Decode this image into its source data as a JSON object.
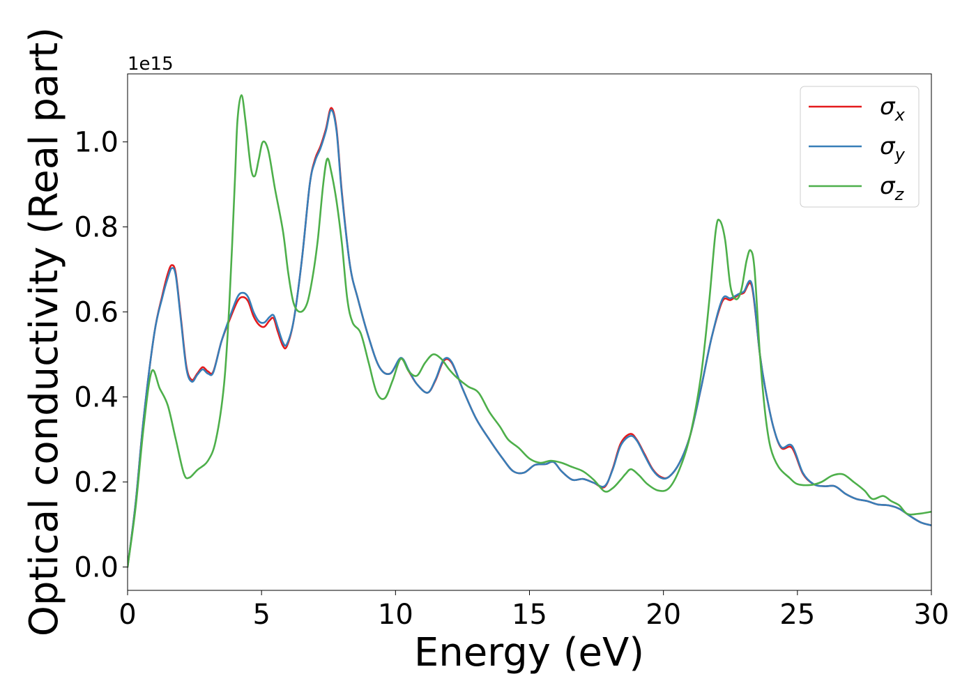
{
  "chart_data": {
    "type": "line",
    "title": "",
    "xlabel": "Energy (eV)",
    "ylabel": "Optical conductivity (Real part)",
    "offset_text": "1e15",
    "xlim": [
      0,
      30
    ],
    "ylim": [
      -0.055,
      1.16
    ],
    "x_ticks": [
      0,
      5,
      10,
      15,
      20,
      25,
      30
    ],
    "x_tick_labels": [
      "0",
      "5",
      "10",
      "15",
      "20",
      "25",
      "30"
    ],
    "y_ticks": [
      0.0,
      0.2,
      0.4,
      0.6,
      0.8,
      1.0
    ],
    "y_tick_labels": [
      "0.0",
      "0.2",
      "0.4",
      "0.6",
      "0.8",
      "1.0"
    ],
    "grid": false,
    "legend_position": "top-right",
    "series": [
      {
        "name": "σx",
        "label_base": "σ",
        "label_sub": "x",
        "color": "#e41a1c",
        "points": [
          [
            0,
            0
          ],
          [
            0.3,
            0.15
          ],
          [
            0.6,
            0.35
          ],
          [
            1.0,
            0.55
          ],
          [
            1.3,
            0.64
          ],
          [
            1.5,
            0.69
          ],
          [
            1.65,
            0.71
          ],
          [
            1.8,
            0.69
          ],
          [
            2.0,
            0.58
          ],
          [
            2.2,
            0.47
          ],
          [
            2.4,
            0.44
          ],
          [
            2.6,
            0.455
          ],
          [
            2.8,
            0.47
          ],
          [
            3.0,
            0.46
          ],
          [
            3.2,
            0.46
          ],
          [
            3.5,
            0.53
          ],
          [
            3.8,
            0.58
          ],
          [
            4.1,
            0.625
          ],
          [
            4.3,
            0.635
          ],
          [
            4.5,
            0.625
          ],
          [
            4.7,
            0.59
          ],
          [
            4.9,
            0.57
          ],
          [
            5.1,
            0.565
          ],
          [
            5.3,
            0.58
          ],
          [
            5.45,
            0.585
          ],
          [
            5.6,
            0.555
          ],
          [
            5.8,
            0.52
          ],
          [
            5.95,
            0.52
          ],
          [
            6.2,
            0.58
          ],
          [
            6.5,
            0.72
          ],
          [
            6.8,
            0.9
          ],
          [
            7.0,
            0.96
          ],
          [
            7.2,
            0.99
          ],
          [
            7.4,
            1.03
          ],
          [
            7.6,
            1.08
          ],
          [
            7.8,
            1.03
          ],
          [
            8.0,
            0.88
          ],
          [
            8.3,
            0.71
          ],
          [
            8.6,
            0.63
          ],
          [
            9.0,
            0.54
          ],
          [
            9.4,
            0.47
          ],
          [
            9.8,
            0.455
          ],
          [
            10.2,
            0.49
          ],
          [
            10.5,
            0.46
          ],
          [
            10.8,
            0.43
          ],
          [
            11.2,
            0.41
          ],
          [
            11.5,
            0.44
          ],
          [
            11.8,
            0.485
          ],
          [
            12.1,
            0.48
          ],
          [
            12.5,
            0.42
          ],
          [
            13.0,
            0.35
          ],
          [
            13.5,
            0.3
          ],
          [
            14.0,
            0.255
          ],
          [
            14.4,
            0.225
          ],
          [
            14.8,
            0.222
          ],
          [
            15.2,
            0.24
          ],
          [
            15.6,
            0.242
          ],
          [
            15.9,
            0.247
          ],
          [
            16.2,
            0.225
          ],
          [
            16.6,
            0.205
          ],
          [
            17.0,
            0.207
          ],
          [
            17.4,
            0.198
          ],
          [
            17.8,
            0.188
          ],
          [
            18.1,
            0.23
          ],
          [
            18.4,
            0.29
          ],
          [
            18.75,
            0.313
          ],
          [
            19.0,
            0.3
          ],
          [
            19.3,
            0.265
          ],
          [
            19.6,
            0.23
          ],
          [
            19.9,
            0.212
          ],
          [
            20.2,
            0.212
          ],
          [
            20.6,
            0.245
          ],
          [
            21.0,
            0.31
          ],
          [
            21.4,
            0.42
          ],
          [
            21.8,
            0.54
          ],
          [
            22.2,
            0.625
          ],
          [
            22.5,
            0.628
          ],
          [
            22.8,
            0.64
          ],
          [
            23.0,
            0.645
          ],
          [
            23.3,
            0.66
          ],
          [
            23.6,
            0.5
          ],
          [
            23.8,
            0.42
          ],
          [
            24.1,
            0.33
          ],
          [
            24.4,
            0.28
          ],
          [
            24.8,
            0.28
          ],
          [
            25.2,
            0.22
          ],
          [
            25.6,
            0.195
          ],
          [
            26.0,
            0.19
          ],
          [
            26.4,
            0.19
          ],
          [
            26.8,
            0.172
          ],
          [
            27.2,
            0.16
          ],
          [
            27.6,
            0.155
          ],
          [
            28.0,
            0.147
          ],
          [
            28.4,
            0.145
          ],
          [
            28.8,
            0.137
          ],
          [
            29.2,
            0.12
          ],
          [
            29.6,
            0.105
          ],
          [
            30.0,
            0.098
          ]
        ]
      },
      {
        "name": "σy",
        "label_base": "σ",
        "label_sub": "y",
        "color": "#377eb8",
        "points": [
          [
            0,
            0
          ],
          [
            0.3,
            0.15
          ],
          [
            0.6,
            0.35
          ],
          [
            1.0,
            0.55
          ],
          [
            1.3,
            0.635
          ],
          [
            1.5,
            0.68
          ],
          [
            1.65,
            0.703
          ],
          [
            1.8,
            0.685
          ],
          [
            2.0,
            0.575
          ],
          [
            2.2,
            0.465
          ],
          [
            2.4,
            0.436
          ],
          [
            2.6,
            0.452
          ],
          [
            2.8,
            0.465
          ],
          [
            3.0,
            0.455
          ],
          [
            3.2,
            0.458
          ],
          [
            3.5,
            0.53
          ],
          [
            3.8,
            0.585
          ],
          [
            4.1,
            0.635
          ],
          [
            4.3,
            0.645
          ],
          [
            4.5,
            0.635
          ],
          [
            4.7,
            0.6
          ],
          [
            4.9,
            0.578
          ],
          [
            5.1,
            0.575
          ],
          [
            5.3,
            0.588
          ],
          [
            5.45,
            0.592
          ],
          [
            5.6,
            0.565
          ],
          [
            5.8,
            0.528
          ],
          [
            5.95,
            0.525
          ],
          [
            6.2,
            0.58
          ],
          [
            6.5,
            0.72
          ],
          [
            6.8,
            0.9
          ],
          [
            7.0,
            0.955
          ],
          [
            7.2,
            0.985
          ],
          [
            7.4,
            1.025
          ],
          [
            7.6,
            1.075
          ],
          [
            7.8,
            1.025
          ],
          [
            8.0,
            0.875
          ],
          [
            8.3,
            0.71
          ],
          [
            8.6,
            0.63
          ],
          [
            9.0,
            0.54
          ],
          [
            9.4,
            0.47
          ],
          [
            9.8,
            0.455
          ],
          [
            10.2,
            0.492
          ],
          [
            10.5,
            0.462
          ],
          [
            10.8,
            0.43
          ],
          [
            11.2,
            0.41
          ],
          [
            11.5,
            0.442
          ],
          [
            11.8,
            0.488
          ],
          [
            12.1,
            0.482
          ],
          [
            12.5,
            0.42
          ],
          [
            13.0,
            0.35
          ],
          [
            13.5,
            0.3
          ],
          [
            14.0,
            0.255
          ],
          [
            14.4,
            0.225
          ],
          [
            14.8,
            0.222
          ],
          [
            15.2,
            0.24
          ],
          [
            15.6,
            0.242
          ],
          [
            15.9,
            0.247
          ],
          [
            16.2,
            0.225
          ],
          [
            16.6,
            0.205
          ],
          [
            17.0,
            0.207
          ],
          [
            17.4,
            0.198
          ],
          [
            17.8,
            0.19
          ],
          [
            18.1,
            0.228
          ],
          [
            18.4,
            0.285
          ],
          [
            18.75,
            0.308
          ],
          [
            19.0,
            0.298
          ],
          [
            19.3,
            0.262
          ],
          [
            19.6,
            0.228
          ],
          [
            19.9,
            0.21
          ],
          [
            20.2,
            0.212
          ],
          [
            20.6,
            0.245
          ],
          [
            21.0,
            0.31
          ],
          [
            21.4,
            0.42
          ],
          [
            21.8,
            0.54
          ],
          [
            22.2,
            0.63
          ],
          [
            22.5,
            0.632
          ],
          [
            22.8,
            0.642
          ],
          [
            23.0,
            0.648
          ],
          [
            23.3,
            0.665
          ],
          [
            23.6,
            0.5
          ],
          [
            23.8,
            0.42
          ],
          [
            24.1,
            0.33
          ],
          [
            24.4,
            0.282
          ],
          [
            24.8,
            0.285
          ],
          [
            25.2,
            0.222
          ],
          [
            25.6,
            0.195
          ],
          [
            26.0,
            0.19
          ],
          [
            26.4,
            0.19
          ],
          [
            26.8,
            0.172
          ],
          [
            27.2,
            0.16
          ],
          [
            27.6,
            0.155
          ],
          [
            28.0,
            0.147
          ],
          [
            28.4,
            0.145
          ],
          [
            28.8,
            0.137
          ],
          [
            29.2,
            0.12
          ],
          [
            29.6,
            0.105
          ],
          [
            30.0,
            0.098
          ]
        ]
      },
      {
        "name": "σz",
        "label_base": "σ",
        "label_sub": "z",
        "color": "#4daf4a",
        "points": [
          [
            0,
            0
          ],
          [
            0.3,
            0.14
          ],
          [
            0.6,
            0.33
          ],
          [
            0.9,
            0.46
          ],
          [
            1.2,
            0.42
          ],
          [
            1.5,
            0.38
          ],
          [
            1.8,
            0.3
          ],
          [
            2.1,
            0.22
          ],
          [
            2.3,
            0.21
          ],
          [
            2.6,
            0.228
          ],
          [
            3.0,
            0.25
          ],
          [
            3.3,
            0.3
          ],
          [
            3.6,
            0.43
          ],
          [
            3.8,
            0.62
          ],
          [
            4.0,
            0.9
          ],
          [
            4.1,
            1.05
          ],
          [
            4.25,
            1.11
          ],
          [
            4.4,
            1.05
          ],
          [
            4.6,
            0.94
          ],
          [
            4.75,
            0.92
          ],
          [
            4.9,
            0.96
          ],
          [
            5.05,
            1.0
          ],
          [
            5.25,
            0.98
          ],
          [
            5.5,
            0.89
          ],
          [
            5.8,
            0.79
          ],
          [
            6.0,
            0.69
          ],
          [
            6.2,
            0.62
          ],
          [
            6.45,
            0.6
          ],
          [
            6.7,
            0.62
          ],
          [
            6.9,
            0.68
          ],
          [
            7.1,
            0.77
          ],
          [
            7.3,
            0.9
          ],
          [
            7.45,
            0.96
          ],
          [
            7.6,
            0.93
          ],
          [
            7.8,
            0.86
          ],
          [
            8.0,
            0.76
          ],
          [
            8.2,
            0.63
          ],
          [
            8.4,
            0.575
          ],
          [
            8.7,
            0.55
          ],
          [
            9.0,
            0.48
          ],
          [
            9.3,
            0.41
          ],
          [
            9.6,
            0.397
          ],
          [
            9.9,
            0.44
          ],
          [
            10.2,
            0.49
          ],
          [
            10.5,
            0.46
          ],
          [
            10.8,
            0.45
          ],
          [
            11.1,
            0.48
          ],
          [
            11.4,
            0.5
          ],
          [
            11.7,
            0.49
          ],
          [
            12.0,
            0.465
          ],
          [
            12.3,
            0.445
          ],
          [
            12.7,
            0.425
          ],
          [
            13.1,
            0.41
          ],
          [
            13.5,
            0.365
          ],
          [
            13.9,
            0.33
          ],
          [
            14.2,
            0.3
          ],
          [
            14.6,
            0.28
          ],
          [
            15.0,
            0.255
          ],
          [
            15.4,
            0.245
          ],
          [
            15.8,
            0.25
          ],
          [
            16.2,
            0.245
          ],
          [
            16.6,
            0.235
          ],
          [
            17.0,
            0.225
          ],
          [
            17.4,
            0.205
          ],
          [
            17.8,
            0.178
          ],
          [
            18.1,
            0.185
          ],
          [
            18.4,
            0.205
          ],
          [
            18.6,
            0.22
          ],
          [
            18.8,
            0.23
          ],
          [
            19.1,
            0.215
          ],
          [
            19.4,
            0.195
          ],
          [
            19.8,
            0.18
          ],
          [
            20.2,
            0.185
          ],
          [
            20.6,
            0.23
          ],
          [
            21.0,
            0.31
          ],
          [
            21.4,
            0.45
          ],
          [
            21.7,
            0.62
          ],
          [
            21.95,
            0.79
          ],
          [
            22.1,
            0.815
          ],
          [
            22.3,
            0.77
          ],
          [
            22.5,
            0.66
          ],
          [
            22.7,
            0.63
          ],
          [
            22.9,
            0.65
          ],
          [
            23.1,
            0.72
          ],
          [
            23.25,
            0.745
          ],
          [
            23.4,
            0.7
          ],
          [
            23.6,
            0.5
          ],
          [
            23.8,
            0.36
          ],
          [
            24.0,
            0.28
          ],
          [
            24.3,
            0.235
          ],
          [
            24.7,
            0.21
          ],
          [
            25.0,
            0.195
          ],
          [
            25.5,
            0.193
          ],
          [
            25.9,
            0.2
          ],
          [
            26.3,
            0.215
          ],
          [
            26.7,
            0.218
          ],
          [
            27.1,
            0.2
          ],
          [
            27.5,
            0.18
          ],
          [
            27.8,
            0.16
          ],
          [
            28.2,
            0.167
          ],
          [
            28.5,
            0.155
          ],
          [
            28.8,
            0.145
          ],
          [
            29.1,
            0.125
          ],
          [
            29.5,
            0.125
          ],
          [
            30.0,
            0.13
          ]
        ]
      }
    ]
  }
}
